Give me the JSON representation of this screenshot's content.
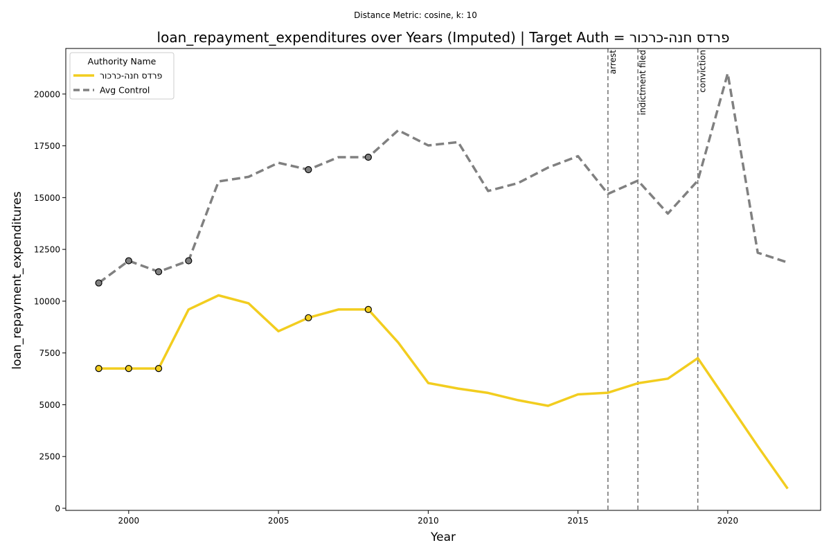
{
  "chart_data": {
    "type": "line",
    "suptitle": "Distance Metric: cosine, k: 10",
    "title": "loan_repayment_expenditures over Years (Imputed) | Target Auth = פרדס חנה-כרכור",
    "xlabel": "Year",
    "ylabel": "loan_repayment_expenditures",
    "xlim": [
      1997.9,
      2023.1
    ],
    "ylim": [
      -100,
      22200
    ],
    "xticks": [
      2000,
      2005,
      2010,
      2015,
      2020
    ],
    "yticks": [
      0,
      2500,
      5000,
      7500,
      10000,
      12500,
      15000,
      17500,
      20000
    ],
    "grid": false,
    "legend": {
      "title": "Authority Name",
      "placement": "top-left",
      "entries": [
        "פרדס חנה-כרכור",
        "Avg Control"
      ]
    },
    "x": [
      1999,
      2000,
      2001,
      2002,
      2003,
      2004,
      2005,
      2006,
      2007,
      2008,
      2009,
      2010,
      2011,
      2012,
      2013,
      2014,
      2015,
      2016,
      2017,
      2018,
      2019,
      2020,
      2021,
      2022
    ],
    "series": [
      {
        "name": "פרדס חנה-כרכור",
        "color": "#f2cd1f",
        "style": "solid",
        "values": [
          6750,
          6750,
          6750,
          9600,
          10280,
          9900,
          8550,
          9200,
          9600,
          9600,
          8000,
          6050,
          5780,
          5570,
          5220,
          4950,
          5500,
          5580,
          6040,
          6260,
          7250,
          5130,
          3000,
          950
        ],
        "imputed_markers": [
          1999,
          2000,
          2001,
          2006,
          2008
        ]
      },
      {
        "name": "Avg Control",
        "color": "#808080",
        "style": "dashed",
        "values": [
          10880,
          11950,
          11420,
          11950,
          15780,
          16000,
          16680,
          16350,
          16950,
          16950,
          18250,
          17520,
          17680,
          15320,
          15700,
          16450,
          17000,
          15180,
          15820,
          14230,
          15820,
          21000,
          12340,
          11870
        ],
        "imputed_markers": [
          1999,
          2000,
          2001,
          2002,
          2006,
          2008
        ]
      }
    ],
    "events": [
      {
        "x": 2016,
        "label": "arrest"
      },
      {
        "x": 2017,
        "label": "indictment filed"
      },
      {
        "x": 2019,
        "label": "conviction"
      }
    ]
  }
}
